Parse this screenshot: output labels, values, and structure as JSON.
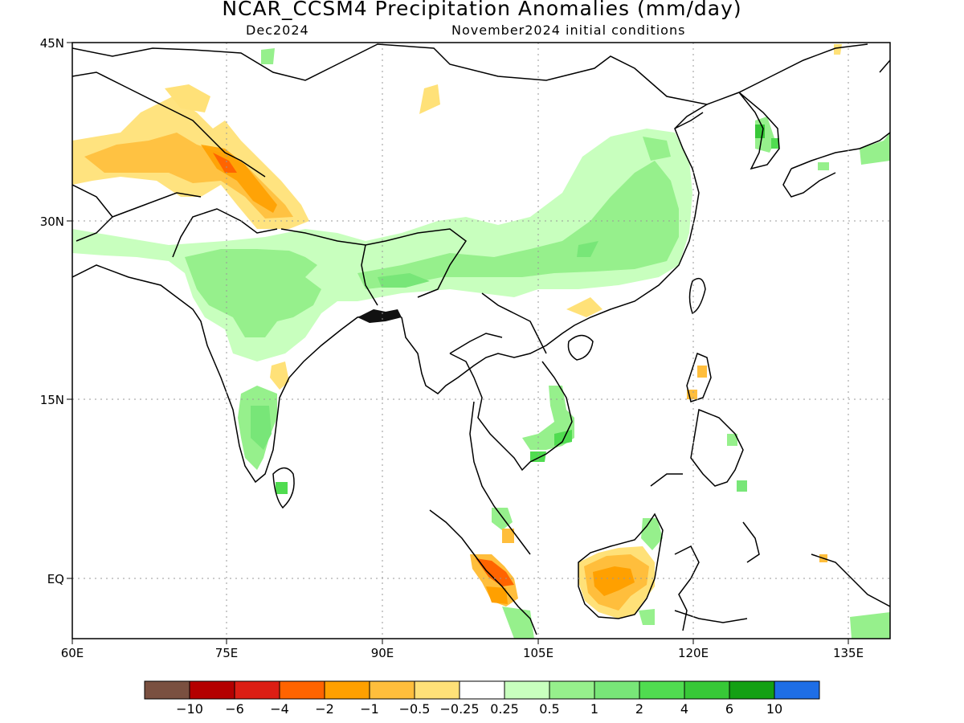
{
  "title": "NCAR_CCSM4 Precipitation Anomalies (mm/day)",
  "subtitle_left": "Dec2024",
  "subtitle_right": "November2024 initial conditions",
  "map": {
    "lon_range": [
      60,
      140
    ],
    "lat_range": [
      -5,
      45
    ],
    "x_ticks": [
      "60E",
      "75E",
      "90E",
      "105E",
      "120E",
      "135E"
    ],
    "y_ticks": [
      "45N",
      "30N",
      "15N",
      "EQ"
    ],
    "gridlines": "dotted"
  },
  "colorbar": {
    "colors": [
      "#7a5040",
      "#b40000",
      "#dc1e14",
      "#ff6400",
      "#ffa000",
      "#ffbe3c",
      "#ffe178",
      "#ffffff",
      "#c8ffbe",
      "#96f08c",
      "#78e678",
      "#50dc50",
      "#37c837",
      "#14a014",
      "#1e6ee6"
    ],
    "labels": [
      "-10",
      "-6",
      "-4",
      "-2",
      "-1",
      "-0.5",
      "-0.25",
      "0.25",
      "0.5",
      "1",
      "2",
      "4",
      "6",
      "10"
    ]
  }
}
